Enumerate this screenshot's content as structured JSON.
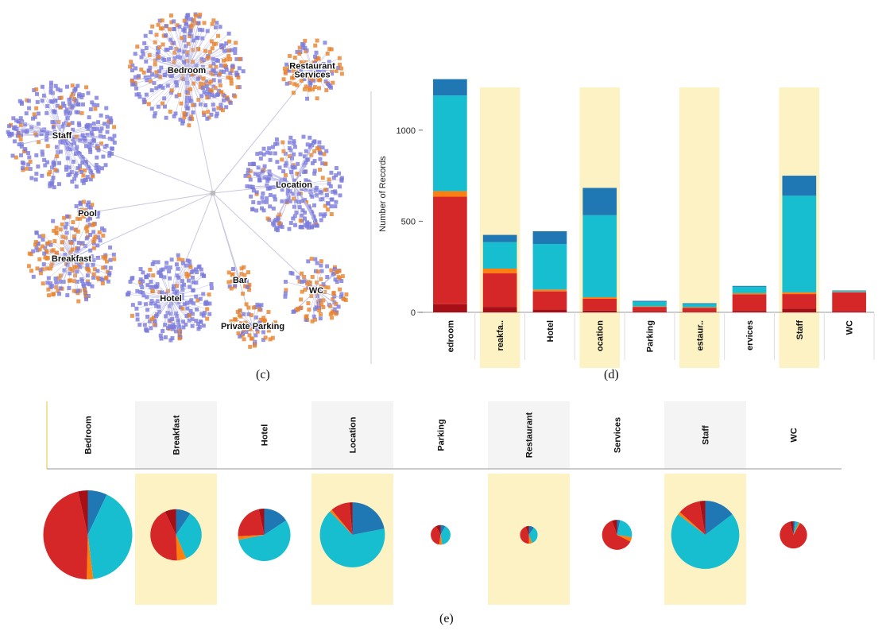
{
  "captions": {
    "c": "(c)",
    "d": "(d)",
    "e": "(e)"
  },
  "colors": {
    "dark_red": "#a50f15",
    "red": "#d62728",
    "orange": "#ff7f0e",
    "cyan": "#17becf",
    "blue": "#1f77b4",
    "highlight": "#fdf2c4",
    "node_purple": "#7b7bdc",
    "node_orange": "#e8822a"
  },
  "network": {
    "clusters": [
      {
        "label": "Bedroom",
        "size": "large",
        "tone": "mixed"
      },
      {
        "label": "Restaurant\nServices",
        "size": "small",
        "tone": "orange"
      },
      {
        "label": "Staff",
        "size": "large",
        "tone": "purple"
      },
      {
        "label": "Location",
        "size": "large",
        "tone": "purple"
      },
      {
        "label": "Pool",
        "size": "tiny",
        "tone": "mixed"
      },
      {
        "label": "Breakfast",
        "size": "medium",
        "tone": "orange"
      },
      {
        "label": "Hotel",
        "size": "medium",
        "tone": "purple"
      },
      {
        "label": "Bar",
        "size": "tiny",
        "tone": "orange"
      },
      {
        "label": "WC",
        "size": "small",
        "tone": "orange"
      },
      {
        "label": "Private Parking",
        "size": "small",
        "tone": "orange"
      }
    ]
  },
  "chart_data": [
    {
      "type": "bar",
      "stacked": true,
      "ylabel": "Number of Records",
      "ylim": [
        0,
        1300
      ],
      "yticks": [
        0,
        500,
        1000
      ],
      "categories": [
        "Bedroom",
        "Breakfast",
        "Hotel",
        "Location",
        "Parking",
        "Restaurant",
        "Services",
        "Staff",
        "WC"
      ],
      "tick_labels": [
        "edroom",
        "reakfa..",
        "Hotel",
        "ocation",
        "Parking",
        "estaur..",
        "ervices",
        "Staff",
        "WC"
      ],
      "highlighted": [
        false,
        true,
        false,
        true,
        false,
        true,
        false,
        true,
        false
      ],
      "series": [
        {
          "color": "#a50f15",
          "values": [
            45,
            30,
            15,
            10,
            5,
            3,
            8,
            20,
            5
          ]
        },
        {
          "color": "#d62728",
          "values": [
            590,
            185,
            100,
            65,
            25,
            22,
            90,
            80,
            105
          ]
        },
        {
          "color": "#ff7f0e",
          "values": [
            30,
            25,
            10,
            8,
            3,
            3,
            7,
            10,
            2
          ]
        },
        {
          "color": "#17becf",
          "values": [
            525,
            145,
            250,
            450,
            25,
            17,
            35,
            530,
            5
          ]
        },
        {
          "color": "#1f77b4",
          "values": [
            90,
            40,
            70,
            150,
            5,
            5,
            5,
            110,
            3
          ]
        }
      ]
    },
    {
      "type": "pie",
      "categories": [
        "Bedroom",
        "Breakfast",
        "Hotel",
        "Location",
        "Parking",
        "Restaurant",
        "Services",
        "Staff",
        "WC"
      ],
      "highlighted": [
        false,
        true,
        false,
        true,
        false,
        true,
        false,
        true,
        false
      ],
      "colors": [
        "#1f77b4",
        "#17becf",
        "#ff7f0e",
        "#d62728",
        "#a50f15"
      ],
      "totals": [
        1280,
        425,
        445,
        683,
        63,
        50,
        145,
        750,
        120
      ],
      "slices": [
        [
          90,
          525,
          30,
          590,
          45
        ],
        [
          40,
          145,
          25,
          185,
          30
        ],
        [
          70,
          250,
          10,
          100,
          15
        ],
        [
          150,
          450,
          8,
          65,
          10
        ],
        [
          5,
          25,
          3,
          25,
          5
        ],
        [
          5,
          17,
          3,
          22,
          3
        ],
        [
          5,
          35,
          7,
          90,
          8
        ],
        [
          110,
          530,
          10,
          80,
          20
        ],
        [
          3,
          5,
          2,
          105,
          5
        ]
      ]
    }
  ]
}
